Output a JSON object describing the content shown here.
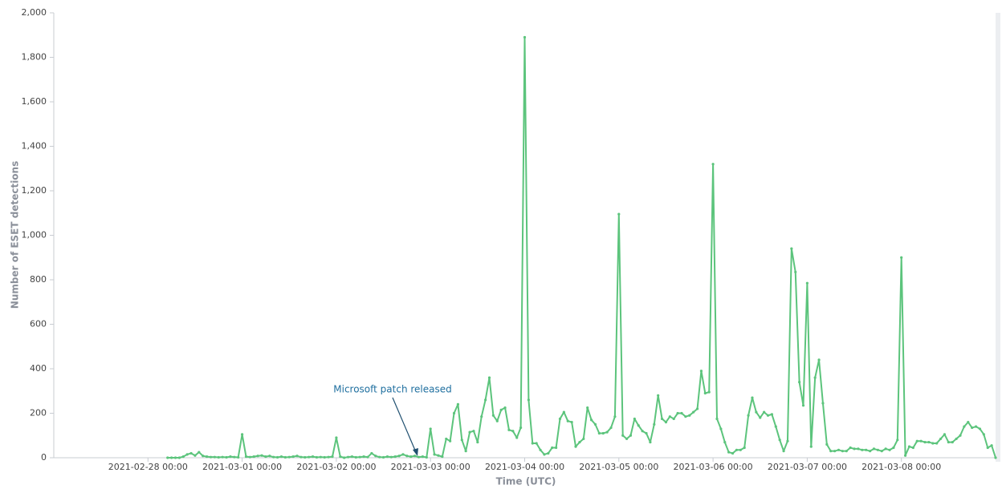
{
  "chart_data": {
    "type": "line",
    "ylabel": "Number of ESET detections",
    "xlabel": "Time (UTC)",
    "annotation": {
      "text": "Microsoft patch released"
    },
    "color": "#5cc47c",
    "grid": false,
    "ylim": [
      0,
      2000
    ],
    "yticks": [
      0,
      200,
      400,
      600,
      800,
      {
        "value": 1000,
        "label": "1,000"
      },
      {
        "value": 1200,
        "label": "1,200"
      },
      {
        "value": 1400,
        "label": "1,400"
      },
      {
        "value": 1600,
        "label": "1,600"
      },
      {
        "value": 1800,
        "label": "1,800"
      },
      {
        "value": 2000,
        "label": "2,000"
      }
    ],
    "xlim": [
      "2021-02-27 00:00",
      "2021-03-09 00:00"
    ],
    "xticks": [
      "2021-02-28 00:00",
      "2021-03-01 00:00",
      "2021-03-02 00:00",
      "2021-03-03 00:00",
      "2021-03-04 00:00",
      "2021-03-05 00:00",
      "2021-03-06 00:00",
      "2021-03-07 00:00",
      "2021-03-08 00:00"
    ],
    "x": [
      "2021-02-28 05:00",
      "2021-02-28 06:00",
      "2021-02-28 07:00",
      "2021-02-28 08:00",
      "2021-02-28 09:00",
      "2021-02-28 10:00",
      "2021-02-28 11:00",
      "2021-02-28 12:00",
      "2021-02-28 13:00",
      "2021-02-28 14:00",
      "2021-02-28 15:00",
      "2021-02-28 16:00",
      "2021-02-28 17:00",
      "2021-02-28 18:00",
      "2021-02-28 19:00",
      "2021-02-28 20:00",
      "2021-02-28 21:00",
      "2021-02-28 22:00",
      "2021-02-28 23:00",
      "2021-03-01 00:00",
      "2021-03-01 01:00",
      "2021-03-01 02:00",
      "2021-03-01 03:00",
      "2021-03-01 04:00",
      "2021-03-01 05:00",
      "2021-03-01 06:00",
      "2021-03-01 07:00",
      "2021-03-01 08:00",
      "2021-03-01 09:00",
      "2021-03-01 10:00",
      "2021-03-01 11:00",
      "2021-03-01 12:00",
      "2021-03-01 13:00",
      "2021-03-01 14:00",
      "2021-03-01 15:00",
      "2021-03-01 16:00",
      "2021-03-01 17:00",
      "2021-03-01 18:00",
      "2021-03-01 19:00",
      "2021-03-01 20:00",
      "2021-03-01 21:00",
      "2021-03-01 22:00",
      "2021-03-01 23:00",
      "2021-03-02 00:00",
      "2021-03-02 01:00",
      "2021-03-02 02:00",
      "2021-03-02 03:00",
      "2021-03-02 04:00",
      "2021-03-02 05:00",
      "2021-03-02 06:00",
      "2021-03-02 07:00",
      "2021-03-02 08:00",
      "2021-03-02 09:00",
      "2021-03-02 10:00",
      "2021-03-02 11:00",
      "2021-03-02 12:00",
      "2021-03-02 13:00",
      "2021-03-02 14:00",
      "2021-03-02 15:00",
      "2021-03-02 16:00",
      "2021-03-02 17:00",
      "2021-03-02 18:00",
      "2021-03-02 19:00",
      "2021-03-02 20:00",
      "2021-03-02 21:00",
      "2021-03-02 22:00",
      "2021-03-02 23:00",
      "2021-03-03 00:00",
      "2021-03-03 01:00",
      "2021-03-03 02:00",
      "2021-03-03 03:00",
      "2021-03-03 04:00",
      "2021-03-03 05:00",
      "2021-03-03 06:00",
      "2021-03-03 07:00",
      "2021-03-03 08:00",
      "2021-03-03 09:00",
      "2021-03-03 10:00",
      "2021-03-03 11:00",
      "2021-03-03 12:00",
      "2021-03-03 13:00",
      "2021-03-03 14:00",
      "2021-03-03 15:00",
      "2021-03-03 16:00",
      "2021-03-03 17:00",
      "2021-03-03 18:00",
      "2021-03-03 19:00",
      "2021-03-03 20:00",
      "2021-03-03 21:00",
      "2021-03-03 22:00",
      "2021-03-03 23:00",
      "2021-03-04 00:00",
      "2021-03-04 01:00",
      "2021-03-04 02:00",
      "2021-03-04 03:00",
      "2021-03-04 04:00",
      "2021-03-04 05:00",
      "2021-03-04 06:00",
      "2021-03-04 07:00",
      "2021-03-04 08:00",
      "2021-03-04 09:00",
      "2021-03-04 10:00",
      "2021-03-04 11:00",
      "2021-03-04 12:00",
      "2021-03-04 13:00",
      "2021-03-04 14:00",
      "2021-03-04 15:00",
      "2021-03-04 16:00",
      "2021-03-04 17:00",
      "2021-03-04 18:00",
      "2021-03-04 19:00",
      "2021-03-04 20:00",
      "2021-03-04 21:00",
      "2021-03-04 22:00",
      "2021-03-04 23:00",
      "2021-03-05 00:00",
      "2021-03-05 01:00",
      "2021-03-05 02:00",
      "2021-03-05 03:00",
      "2021-03-05 04:00",
      "2021-03-05 05:00",
      "2021-03-05 06:00",
      "2021-03-05 07:00",
      "2021-03-05 08:00",
      "2021-03-05 09:00",
      "2021-03-05 10:00",
      "2021-03-05 11:00",
      "2021-03-05 12:00",
      "2021-03-05 13:00",
      "2021-03-05 14:00",
      "2021-03-05 15:00",
      "2021-03-05 16:00",
      "2021-03-05 17:00",
      "2021-03-05 18:00",
      "2021-03-05 19:00",
      "2021-03-05 20:00",
      "2021-03-05 21:00",
      "2021-03-05 22:00",
      "2021-03-05 23:00",
      "2021-03-06 00:00",
      "2021-03-06 01:00",
      "2021-03-06 02:00",
      "2021-03-06 03:00",
      "2021-03-06 04:00",
      "2021-03-06 05:00",
      "2021-03-06 06:00",
      "2021-03-06 07:00",
      "2021-03-06 08:00",
      "2021-03-06 09:00",
      "2021-03-06 10:00",
      "2021-03-06 11:00",
      "2021-03-06 12:00",
      "2021-03-06 13:00",
      "2021-03-06 14:00",
      "2021-03-06 15:00",
      "2021-03-06 16:00",
      "2021-03-06 17:00",
      "2021-03-06 18:00",
      "2021-03-06 19:00",
      "2021-03-06 20:00",
      "2021-03-06 21:00",
      "2021-03-06 22:00",
      "2021-03-06 23:00",
      "2021-03-07 00:00",
      "2021-03-07 01:00",
      "2021-03-07 02:00",
      "2021-03-07 03:00",
      "2021-03-07 04:00",
      "2021-03-07 05:00",
      "2021-03-07 06:00",
      "2021-03-07 07:00",
      "2021-03-07 08:00",
      "2021-03-07 09:00",
      "2021-03-07 10:00",
      "2021-03-07 11:00",
      "2021-03-07 12:00",
      "2021-03-07 13:00",
      "2021-03-07 14:00",
      "2021-03-07 15:00",
      "2021-03-07 16:00",
      "2021-03-07 17:00",
      "2021-03-07 18:00",
      "2021-03-07 19:00",
      "2021-03-07 20:00",
      "2021-03-07 21:00",
      "2021-03-07 22:00",
      "2021-03-07 23:00",
      "2021-03-08 00:00",
      "2021-03-08 01:00",
      "2021-03-08 02:00",
      "2021-03-08 03:00",
      "2021-03-08 04:00",
      "2021-03-08 05:00",
      "2021-03-08 06:00",
      "2021-03-08 07:00",
      "2021-03-08 08:00",
      "2021-03-08 09:00",
      "2021-03-08 10:00",
      "2021-03-08 11:00",
      "2021-03-08 12:00",
      "2021-03-08 13:00",
      "2021-03-08 14:00",
      "2021-03-08 15:00",
      "2021-03-08 16:00",
      "2021-03-08 17:00",
      "2021-03-08 18:00",
      "2021-03-08 19:00",
      "2021-03-08 20:00",
      "2021-03-08 21:00",
      "2021-03-08 22:00",
      "2021-03-08 23:00",
      "2021-03-09 00:00"
    ],
    "values": [
      0,
      0,
      0,
      0,
      5,
      15,
      20,
      10,
      25,
      8,
      5,
      3,
      3,
      2,
      3,
      2,
      5,
      3,
      2,
      105,
      5,
      3,
      5,
      8,
      10,
      5,
      8,
      3,
      2,
      5,
      2,
      3,
      5,
      8,
      3,
      2,
      3,
      5,
      2,
      3,
      2,
      3,
      5,
      90,
      5,
      0,
      3,
      5,
      2,
      3,
      5,
      3,
      20,
      8,
      3,
      2,
      5,
      3,
      5,
      8,
      15,
      8,
      5,
      8,
      3,
      5,
      2,
      130,
      15,
      10,
      5,
      85,
      75,
      200,
      240,
      80,
      30,
      115,
      120,
      70,
      185,
      260,
      360,
      190,
      165,
      215,
      225,
      125,
      120,
      90,
      135,
      1890,
      260,
      65,
      65,
      35,
      15,
      20,
      45,
      45,
      175,
      205,
      165,
      160,
      50,
      70,
      85,
      225,
      170,
      150,
      110,
      110,
      115,
      135,
      185,
      1095,
      100,
      85,
      100,
      175,
      145,
      120,
      110,
      70,
      150,
      280,
      175,
      160,
      185,
      175,
      200,
      200,
      185,
      190,
      205,
      220,
      390,
      290,
      295,
      1320,
      175,
      130,
      70,
      25,
      20,
      35,
      35,
      45,
      190,
      270,
      205,
      180,
      205,
      190,
      195,
      140,
      80,
      30,
      75,
      940,
      835,
      340,
      235,
      785,
      50,
      360,
      440,
      245,
      60,
      30,
      30,
      35,
      30,
      30,
      45,
      40,
      40,
      35,
      35,
      30,
      40,
      35,
      30,
      40,
      35,
      45,
      80,
      900,
      10,
      50,
      45,
      75,
      75,
      70,
      70,
      65,
      65,
      85,
      105,
      70,
      70,
      85,
      100,
      140,
      160,
      135,
      140,
      130,
      105,
      45,
      55,
      0
    ]
  }
}
